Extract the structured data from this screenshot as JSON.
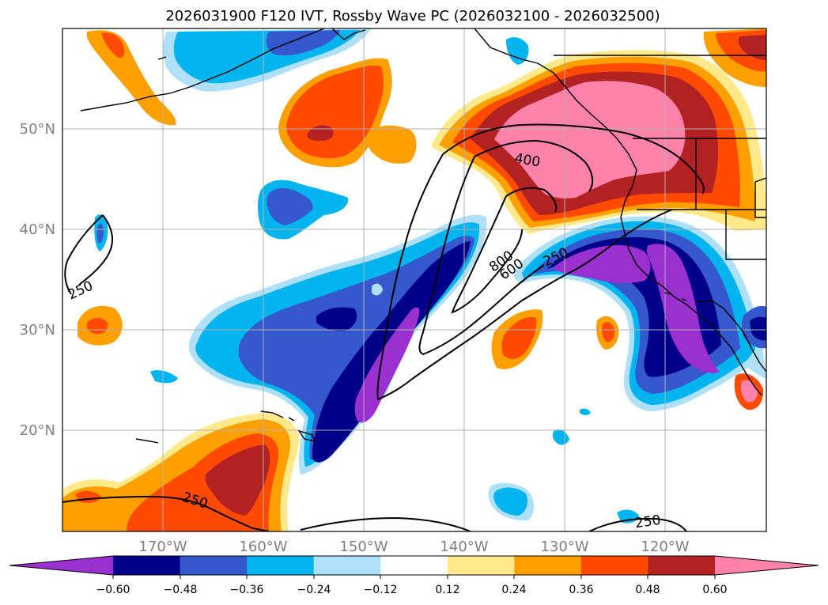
{
  "title": "2026031900 F120 IVT, Rossby Wave PC (2026032100 - 2026032500)",
  "map": {
    "lat_labels": [
      "50°N",
      "40°N",
      "30°N",
      "20°N"
    ],
    "lon_labels": [
      "170°W",
      "160°W",
      "150°W",
      "140°W",
      "130°W",
      "120°W"
    ],
    "contour_labels": [
      "400",
      "800",
      "600",
      "250",
      "250",
      "250",
      "250"
    ],
    "colors": {
      "land_outline": "#000000",
      "gridline": "#b0b0b0"
    }
  },
  "colorbar": {
    "ticks": [
      "−0.60",
      "−0.48",
      "−0.36",
      "−0.24",
      "−0.12",
      "0.12",
      "0.24",
      "0.36",
      "0.48",
      "0.60"
    ],
    "colors": [
      "#9b30d0",
      "#00008b",
      "#3558cc",
      "#00b4f0",
      "#aee0fa",
      "#ffffff",
      "#ffe98a",
      "#ffa000",
      "#ff4a00",
      "#b22222",
      "#ff82aa"
    ]
  }
}
